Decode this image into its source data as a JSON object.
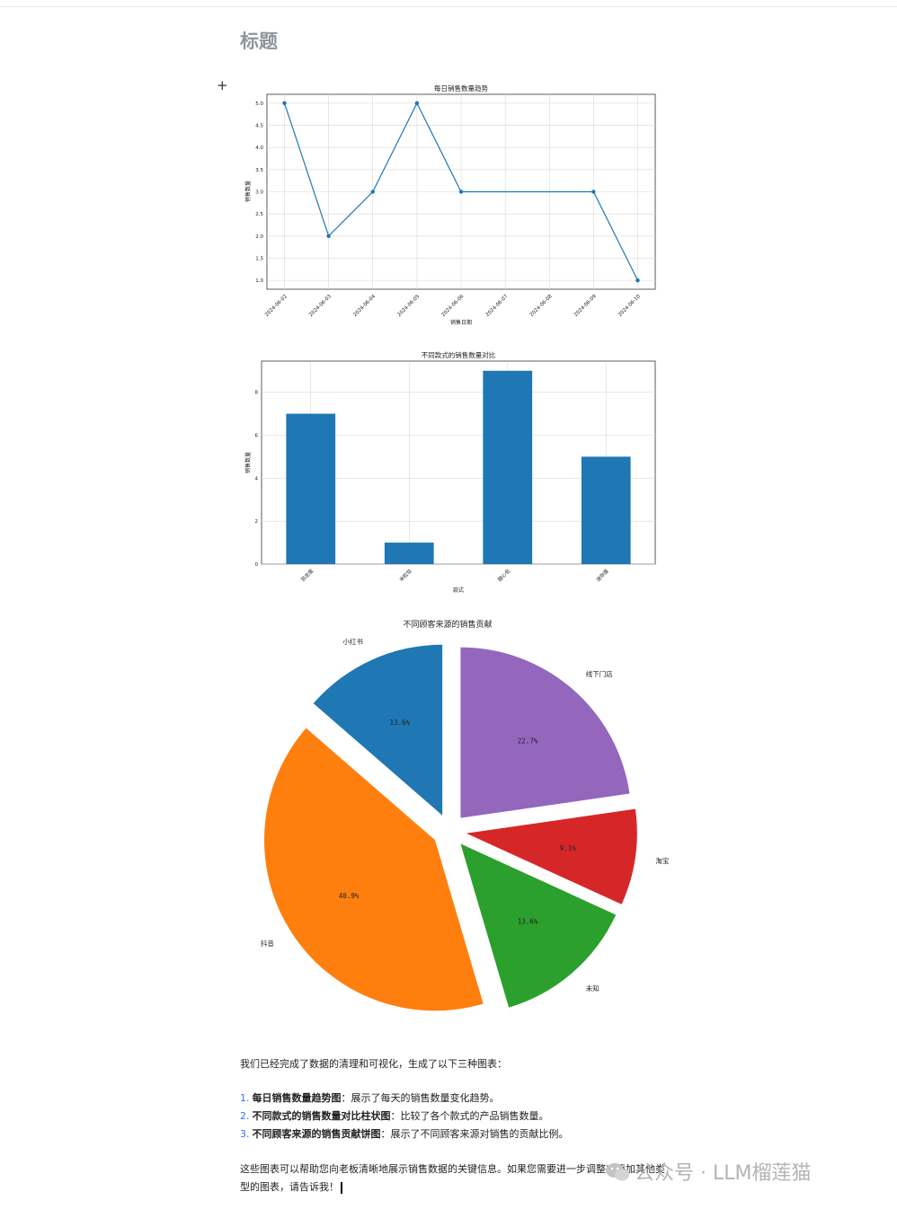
{
  "doc": {
    "title": "标题",
    "plus": "+",
    "intro": "我们已经完成了数据的清理和可视化，生成了以下三种图表：",
    "list": [
      {
        "num": "1.",
        "bold": "每日销售数量趋势图",
        "text": "：展示了每天的销售数量变化趋势。"
      },
      {
        "num": "2.",
        "bold": "不同款式的销售数量对比柱状图",
        "text": "：比较了各个款式的产品销售数量。"
      },
      {
        "num": "3.",
        "bold": "不同顾客来源的销售贡献饼图",
        "text": "：展示了不同顾客来源对销售的贡献比例。"
      }
    ],
    "outro": "这些图表可以帮助您向老板清晰地展示销售数据的关键信息。如果您需要进一步调整或添加其他类型的图表，请告诉我！",
    "watermark": "公众号 · LLM榴莲猫"
  },
  "chart_data": [
    {
      "type": "line",
      "title": "每日销售数量趋势",
      "xlabel": "销售日期",
      "ylabel": "销售数量",
      "x_ticks": [
        "2024-06-02",
        "2024-06-03",
        "2024-06-04",
        "2024-06-05",
        "2024-06-06",
        "2024-06-07",
        "2024-06-08",
        "2024-06-09",
        "2024-06-10"
      ],
      "points": [
        {
          "x": "2024-06-02",
          "y": 5
        },
        {
          "x": "2024-06-03",
          "y": 2
        },
        {
          "x": "2024-06-04",
          "y": 3
        },
        {
          "x": "2024-06-05",
          "y": 5
        },
        {
          "x": "2024-06-06",
          "y": 3
        },
        {
          "x": "2024-06-09",
          "y": 3
        },
        {
          "x": "2024-06-10",
          "y": 1
        }
      ],
      "y_ticks": [
        "1.0",
        "1.5",
        "2.0",
        "2.5",
        "3.0",
        "3.5",
        "4.0",
        "4.5",
        "5.0"
      ],
      "ylim": [
        0.8,
        5.2
      ],
      "grid": true,
      "color": "#1f77b4"
    },
    {
      "type": "bar",
      "title": "不同款式的销售数量对比",
      "xlabel": "款式",
      "ylabel": "销售数量",
      "categories": [
        "恐龙蛋",
        "米粒包",
        "甜心包",
        "迷你蛋"
      ],
      "values": [
        7,
        1,
        9,
        5
      ],
      "y_ticks": [
        "0",
        "2",
        "4",
        "6",
        "8"
      ],
      "ylim": [
        0,
        9.45
      ],
      "grid": true,
      "color": "#1f77b4"
    },
    {
      "type": "pie",
      "title": "不同顾客来源的销售贡献",
      "slices": [
        {
          "label": "小红书",
          "pct": "13.6%",
          "value": 13.6,
          "color": "#1f77b4"
        },
        {
          "label": "抖音",
          "pct": "40.9%",
          "value": 40.9,
          "color": "#ff7f0e"
        },
        {
          "label": "未知",
          "pct": "13.6%",
          "value": 13.6,
          "color": "#2ca02c"
        },
        {
          "label": "淘宝",
          "pct": "9.1%",
          "value": 9.1,
          "color": "#d62728"
        },
        {
          "label": "线下门店",
          "pct": "22.7%",
          "value": 22.7,
          "color": "#9467bd"
        }
      ],
      "start_angle": 90,
      "explode": true
    }
  ]
}
